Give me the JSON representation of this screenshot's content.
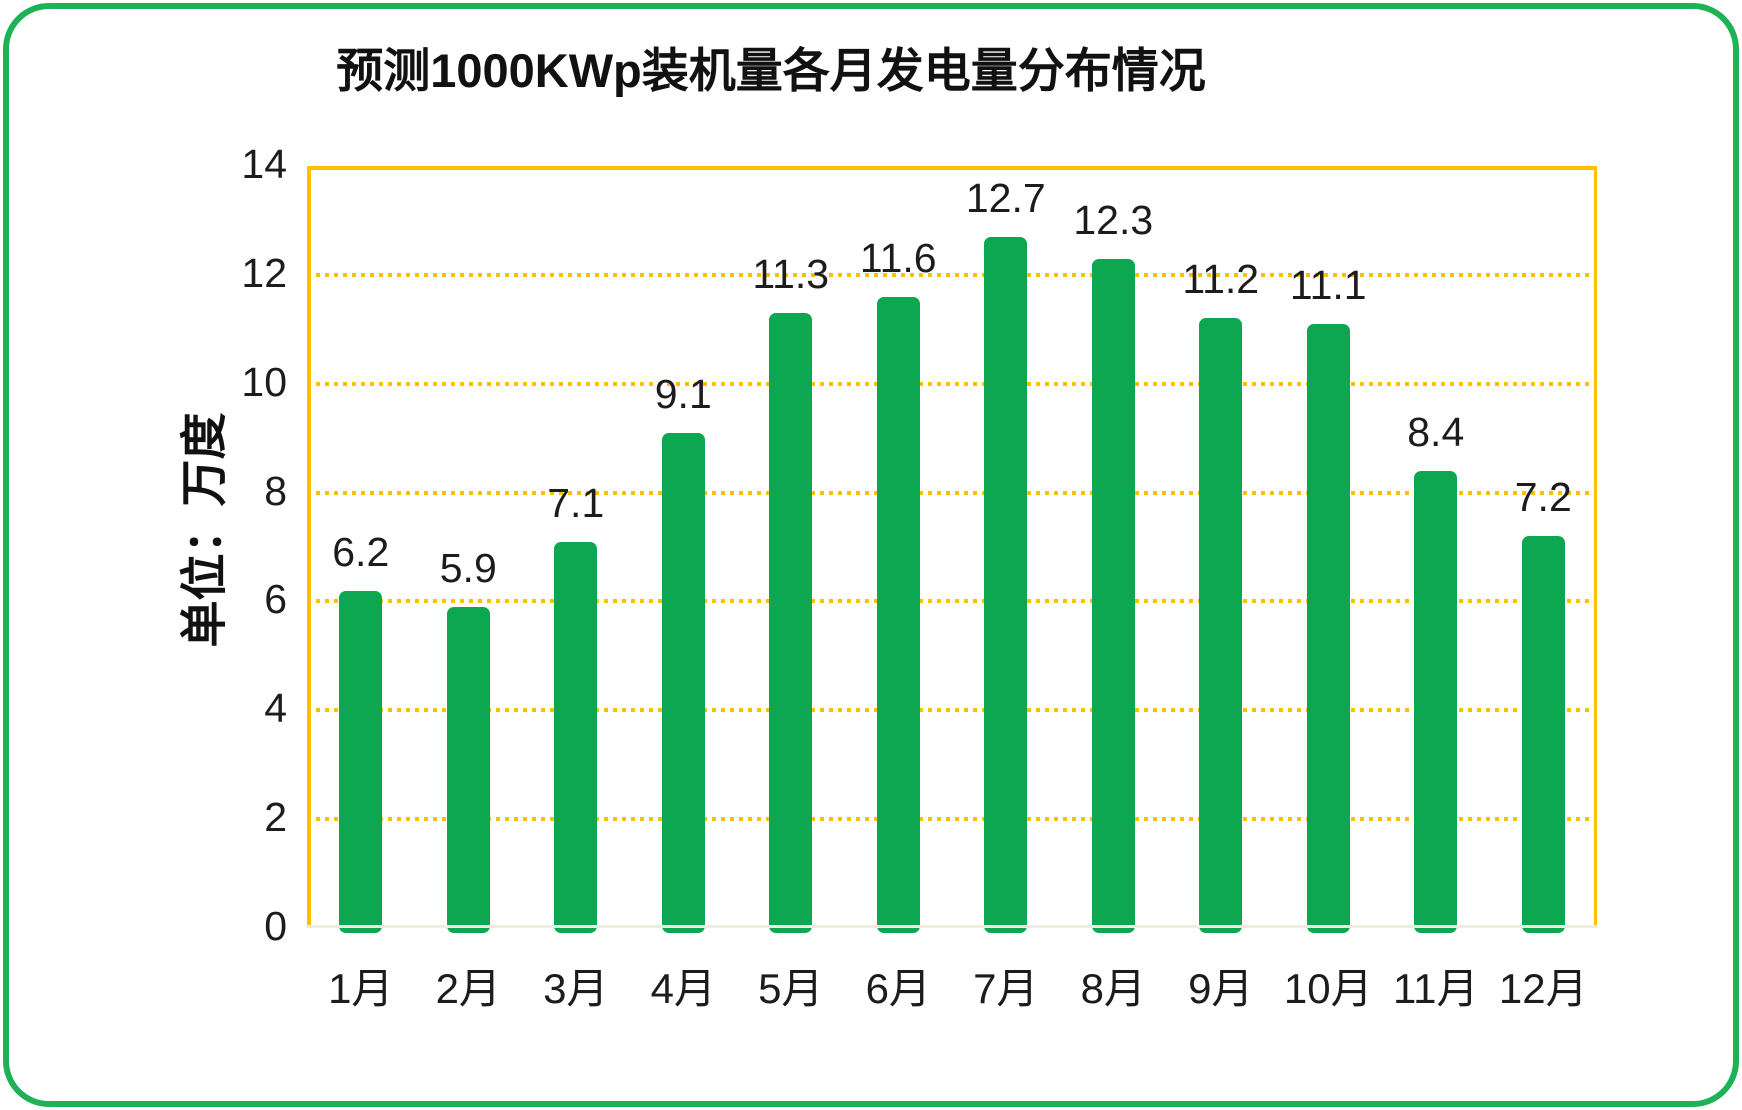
{
  "chart_data": {
    "type": "bar",
    "title": "预测1000KWp装机量各月发电量分布情况",
    "ylabel": "单位：万度",
    "xlabel": "",
    "categories": [
      "1月",
      "2月",
      "3月",
      "4月",
      "5月",
      "6月",
      "7月",
      "8月",
      "9月",
      "10月",
      "11月",
      "12月"
    ],
    "values": [
      6.2,
      5.9,
      7.1,
      9.1,
      11.3,
      11.6,
      12.7,
      12.3,
      11.2,
      11.1,
      8.4,
      7.2
    ],
    "yticks": [
      0,
      2,
      4,
      6,
      8,
      10,
      12,
      14
    ],
    "ylim": [
      0,
      14
    ],
    "grid": "horizontal-dotted",
    "legend_position": "none",
    "data_labels_shown": true,
    "colors": {
      "bar": "#0CA750",
      "gridline": "#FFC000",
      "axis_border": "#FFC000",
      "outer_border": "#1EB156",
      "baseline": "#F0EBDF",
      "text": "#1c1c1c"
    }
  }
}
